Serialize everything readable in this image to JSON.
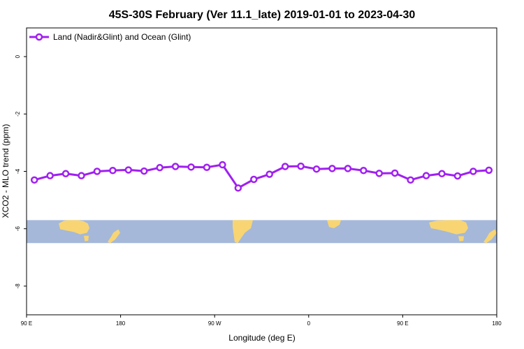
{
  "chart_data": {
    "type": "line",
    "title": "45S-30S February (Ver 11.1_late)   2019-01-01 to 2023-04-30",
    "xlabel": "Longitude (deg E)",
    "ylabel": "XCO2 - MLO trend (ppm)",
    "xlim": [
      90,
      540
    ],
    "ylim": [
      -9,
      1
    ],
    "x_ticks": [
      {
        "value": 90,
        "label": "90 E"
      },
      {
        "value": 180,
        "label": "180"
      },
      {
        "value": 270,
        "label": "90 W"
      },
      {
        "value": 360,
        "label": "0"
      },
      {
        "value": 450,
        "label": "90 E"
      },
      {
        "value": 540,
        "label": "180"
      }
    ],
    "y_ticks": [
      {
        "value": 0,
        "label": "0"
      },
      {
        "value": -2,
        "label": "-2"
      },
      {
        "value": -4,
        "label": "-4"
      },
      {
        "value": -6,
        "label": "-6"
      },
      {
        "value": -8,
        "label": "-8"
      }
    ],
    "legend": {
      "position": "top-left"
    },
    "series": [
      {
        "name": "Land (Nadir&Glint) and Ocean (Glint)",
        "color": "#a020f0",
        "x": [
          97.5,
          112.5,
          127.5,
          142.5,
          157.5,
          172.5,
          187.5,
          202.5,
          217.5,
          232.5,
          247.5,
          262.5,
          277.5,
          292.5,
          307.5,
          322.5,
          337.5,
          352.5,
          367.5,
          382.5,
          397.5,
          412.5,
          427.5,
          442.5,
          457.5,
          472.5,
          487.5,
          502.5,
          517.5,
          532.5
        ],
        "y": [
          -4.3,
          -4.15,
          -4.08,
          -4.15,
          -4.0,
          -3.97,
          -3.95,
          -3.99,
          -3.87,
          -3.83,
          -3.85,
          -3.86,
          -3.77,
          -4.58,
          -4.28,
          -4.1,
          -3.83,
          -3.82,
          -3.92,
          -3.9,
          -3.9,
          -3.97,
          -4.07,
          -4.06,
          -4.3,
          -4.15,
          -4.08,
          -4.16,
          -4.0,
          -3.96
        ]
      }
    ],
    "background_map": {
      "y_range": [
        -6.5,
        -5.7
      ],
      "ocean_color": "#a5b8d9",
      "land_color": "#f8d572"
    }
  }
}
